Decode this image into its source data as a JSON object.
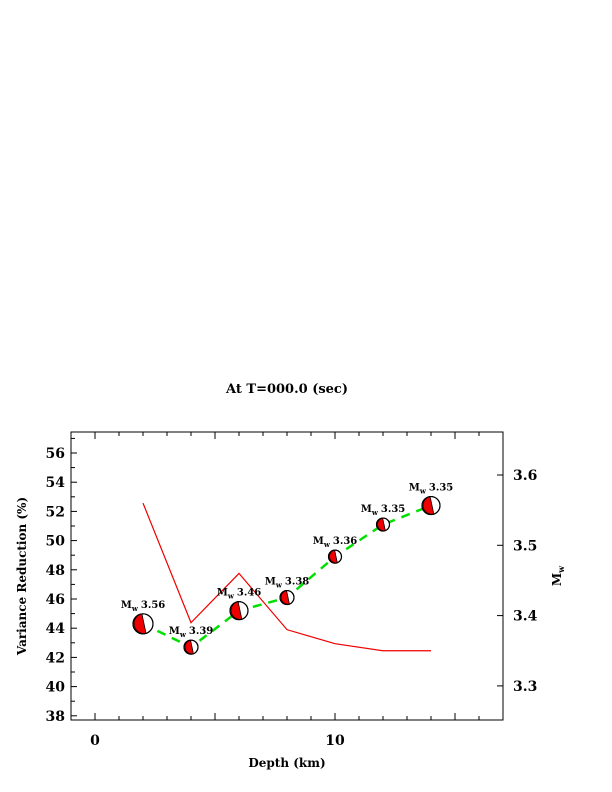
{
  "chart_data": {
    "type": "line",
    "title": "At T=000.0 (sec)",
    "xlabel": "Depth (km)",
    "ylabel": "Variance Reduction (%)",
    "y2label_main": "M",
    "y2label_sub": "w",
    "xlim": [
      -1,
      17
    ],
    "ylim": [
      37.7,
      57.4
    ],
    "y2lim": [
      3.25,
      3.63
    ],
    "xticks": [
      0,
      10
    ],
    "yticks": [
      38,
      40,
      42,
      44,
      46,
      48,
      50,
      52,
      54,
      56
    ],
    "y2ticks": [
      "3.3",
      "3.4",
      "3.5",
      "3.6"
    ],
    "grid": false,
    "series": [
      {
        "name": "Variance Reduction",
        "axis": "left",
        "style": "green dashed with focal mechanism symbols",
        "color": "#00e000",
        "x": [
          2,
          4,
          6,
          8,
          10,
          12,
          14
        ],
        "values": [
          44.3,
          42.7,
          45.2,
          46.1,
          48.9,
          51.1,
          52.4
        ]
      },
      {
        "name": "Mw",
        "axis": "right",
        "style": "red solid",
        "color": "#ee0000",
        "x": [
          2,
          4,
          6,
          8,
          10,
          12,
          14
        ],
        "values": [
          3.56,
          3.39,
          3.46,
          3.38,
          3.36,
          3.35,
          3.35
        ]
      }
    ],
    "annotations": [
      {
        "prefix": "M",
        "sub": "w",
        "value": "3.56"
      },
      {
        "prefix": "M",
        "sub": "w",
        "value": "3.39"
      },
      {
        "prefix": "M",
        "sub": "w",
        "value": "3.46"
      },
      {
        "prefix": "M",
        "sub": "w",
        "value": "3.38"
      },
      {
        "prefix": "M",
        "sub": "w",
        "value": "3.36"
      },
      {
        "prefix": "M",
        "sub": "w",
        "value": "3.35"
      },
      {
        "prefix": "M",
        "sub": "w",
        "value": "3.35"
      }
    ]
  }
}
